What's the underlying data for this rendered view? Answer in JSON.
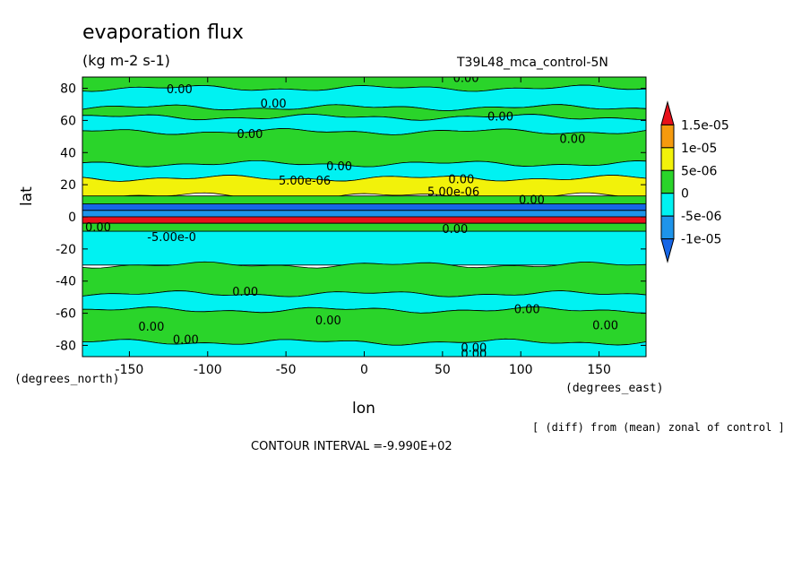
{
  "title": "evaporation flux",
  "units": "(kg m-2 s-1)",
  "run": "T39L48_mca_control-5N",
  "note": "[ (diff) from (mean) zonal of control ]",
  "contour_interval": "CONTOUR INTERVAL =-9.990E+02",
  "chart_data": {
    "type": "heatmap",
    "title": "evaporation flux",
    "subtitle": "(kg m-2 s-1)",
    "xlabel": "lon",
    "ylabel": "lat",
    "x_unit_label": "(degrees_east)",
    "y_unit_label": "(degrees_north)",
    "xlim": [
      -180,
      180
    ],
    "ylim": [
      -87,
      87
    ],
    "x_ticks": [
      -150,
      -100,
      -50,
      0,
      50,
      100,
      150
    ],
    "x_tick_labels": [
      "-150",
      "-100",
      "-50",
      "0",
      "50",
      "100",
      "150"
    ],
    "y_ticks": [
      -80,
      -60,
      -40,
      -20,
      0,
      20,
      40,
      60,
      80
    ],
    "y_tick_labels": [
      "-80",
      "-60",
      "-40",
      "-20",
      "0",
      "20",
      "40",
      "60",
      "80"
    ],
    "legend": {
      "placement": "right",
      "levels": [
        "1.5e-05",
        "1e-05",
        "5e-06",
        "0",
        "-5e-06",
        "-1e-05"
      ],
      "colors": [
        "#e8101a",
        "#f59a0e",
        "#f2f20a",
        "#2ad42a",
        "#00f2f2",
        "#1e94ea",
        "#1666e6"
      ]
    },
    "bands": [
      {
        "lat_from": 87,
        "lat_to": 80,
        "value": "0 to 5e-06"
      },
      {
        "lat_from": 80,
        "lat_to": 68,
        "value": "-5e-06 to 0"
      },
      {
        "lat_from": 68,
        "lat_to": 62,
        "value": "0 to 5e-06"
      },
      {
        "lat_from": 62,
        "lat_to": 53,
        "value": "-5e-06 to 0"
      },
      {
        "lat_from": 53,
        "lat_to": 33,
        "value": "0 to 5e-06"
      },
      {
        "lat_from": 33,
        "lat_to": 24,
        "value": "-5e-06 to 0"
      },
      {
        "lat_from": 24,
        "lat_to": 13,
        "value": "5e-06 to 1e-05"
      },
      {
        "lat_from": 13,
        "lat_to": 8,
        "value": "0 to 5e-06"
      },
      {
        "lat_from": 8,
        "lat_to": 4,
        "value": "< -1e-05"
      },
      {
        "lat_from": 4,
        "lat_to": 0,
        "value": "-1e-05 to -5e-06"
      },
      {
        "lat_from": 0,
        "lat_to": -4,
        "value": "> 1.5e-05"
      },
      {
        "lat_from": -4,
        "lat_to": -9,
        "value": "0 to 5e-06"
      },
      {
        "lat_from": -9,
        "lat_to": -30,
        "value": "-5e-06 to 0"
      },
      {
        "lat_from": -30,
        "lat_to": -48,
        "value": "0 to 5e-06"
      },
      {
        "lat_from": -48,
        "lat_to": -58,
        "value": "-5e-06 to 0"
      },
      {
        "lat_from": -58,
        "lat_to": -78,
        "value": "0 to 5e-06"
      },
      {
        "lat_from": -78,
        "lat_to": -87,
        "value": "-5e-06 to 0"
      }
    ],
    "contour_labels": [
      {
        "text": "0.00",
        "lon": -118,
        "lat": 79
      },
      {
        "text": "0.00",
        "lon": -58,
        "lat": 70
      },
      {
        "text": "0.00",
        "lon": 65,
        "lat": 86
      },
      {
        "text": "0.00",
        "lon": 87,
        "lat": 62
      },
      {
        "text": "0.00",
        "lon": 133,
        "lat": 48
      },
      {
        "text": "0.00",
        "lon": -73,
        "lat": 51
      },
      {
        "text": "0.00",
        "lon": -16,
        "lat": 31
      },
      {
        "text": "5.00e-06",
        "lon": -38,
        "lat": 22
      },
      {
        "text": "0.00",
        "lon": 62,
        "lat": 23
      },
      {
        "text": "5.00e-06",
        "lon": 57,
        "lat": 15
      },
      {
        "text": "0.00",
        "lon": 107,
        "lat": 10
      },
      {
        "text": "0.00",
        "lon": -170,
        "lat": -7
      },
      {
        "text": "-5.00e-0",
        "lon": -123,
        "lat": -13
      },
      {
        "text": "0.00",
        "lon": 58,
        "lat": -8
      },
      {
        "text": "0.00",
        "lon": -76,
        "lat": -47
      },
      {
        "text": "0.00",
        "lon": -23,
        "lat": -65
      },
      {
        "text": "0.00",
        "lon": -136,
        "lat": -69
      },
      {
        "text": "0.00",
        "lon": -114,
        "lat": -77
      },
      {
        "text": "0.00",
        "lon": 104,
        "lat": -58
      },
      {
        "text": "0.00",
        "lon": 154,
        "lat": -68
      },
      {
        "text": "0.00",
        "lon": 70,
        "lat": -82
      },
      {
        "text": "0.00",
        "lon": 70,
        "lat": -86
      }
    ]
  }
}
